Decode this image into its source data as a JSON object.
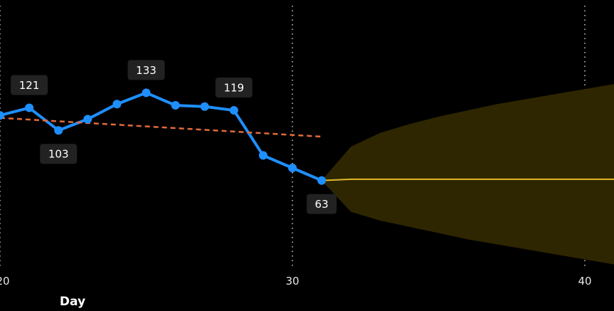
{
  "chart_data": {
    "type": "line",
    "xlabel": "Day",
    "ylabel": "",
    "xlim": [
      20,
      41
    ],
    "ylim": [
      0,
      210
    ],
    "x_ticks": [
      {
        "value": 20,
        "label": "20"
      },
      {
        "value": 30,
        "label": "30"
      },
      {
        "value": 40,
        "label": "40"
      }
    ],
    "vertical_gridlines": [
      20,
      30,
      40
    ],
    "series": [
      {
        "role": "actual",
        "color": "#1f8fff",
        "x": [
          20,
          21,
          22,
          23,
          24,
          25,
          26,
          27,
          28,
          29,
          30,
          31
        ],
        "y": [
          115,
          121,
          103,
          112,
          124,
          133,
          123,
          122,
          119,
          83,
          73,
          63
        ]
      },
      {
        "role": "trend",
        "color": "#e36a3c",
        "style": "dashed",
        "x": [
          20,
          31
        ],
        "y": [
          113,
          98
        ]
      },
      {
        "role": "forecast",
        "color": "#e0b92a",
        "x": [
          31,
          32,
          41
        ],
        "y": [
          63,
          64,
          64
        ]
      }
    ],
    "forecast_band": {
      "color": "#2e2600",
      "x": [
        31,
        32,
        33,
        34,
        35,
        36,
        37,
        38,
        39,
        40,
        41
      ],
      "upper": [
        63,
        90,
        101,
        108,
        114,
        119,
        124,
        128,
        132,
        136,
        140
      ],
      "lower": [
        63,
        38,
        31,
        26,
        21,
        16,
        12,
        8,
        4,
        0,
        -4
      ]
    },
    "data_labels": [
      {
        "x": 21,
        "y": 121,
        "text": "121",
        "position": "above"
      },
      {
        "x": 22,
        "y": 103,
        "text": "103",
        "position": "below"
      },
      {
        "x": 25,
        "y": 133,
        "text": "133",
        "position": "above"
      },
      {
        "x": 28,
        "y": 119,
        "text": "119",
        "position": "above"
      },
      {
        "x": 31,
        "y": 63,
        "text": "63",
        "position": "below"
      }
    ],
    "grid": true,
    "legend": "none"
  }
}
